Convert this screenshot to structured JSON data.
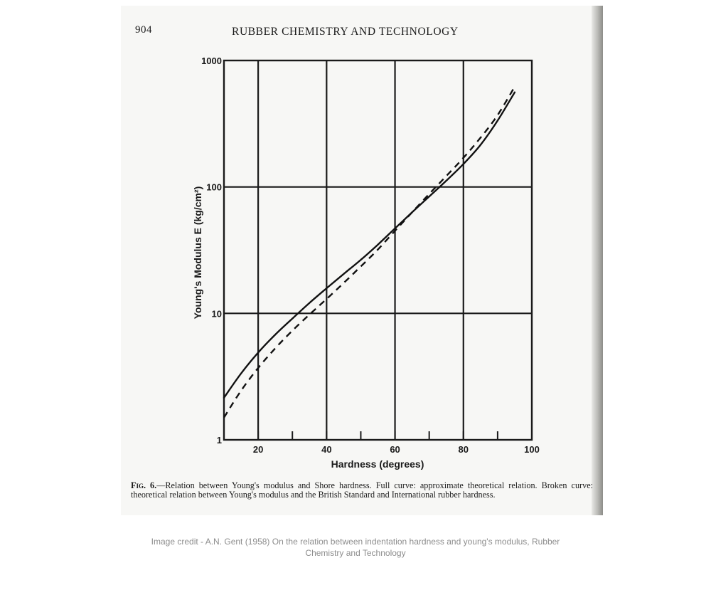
{
  "header": {
    "page_number": "904",
    "journal_title": "RUBBER CHEMISTRY AND TECHNOLOGY"
  },
  "chart_data": {
    "type": "line",
    "xlabel": "Hardness (degrees)",
    "ylabel": "Young's Modulus  E  (kg/cm²)",
    "x_ticks": [
      "20",
      "40",
      "60",
      "80",
      "100"
    ],
    "y_ticks": [
      "1",
      "10",
      "100",
      "1000"
    ],
    "xlim": [
      10,
      100
    ],
    "ylim": [
      1,
      1000
    ],
    "y_scale": "log",
    "grid": true,
    "series": [
      {
        "style": "solid",
        "x": [
          10,
          15,
          20,
          25,
          30,
          35,
          40,
          45,
          50,
          55,
          60,
          65,
          70,
          75,
          80,
          85,
          90,
          95
        ],
        "y": [
          2.15,
          3.35,
          4.9,
          6.8,
          9.1,
          12.1,
          15.8,
          20.5,
          26.5,
          35,
          47,
          63,
          84,
          112,
          152,
          215,
          335,
          560
        ]
      },
      {
        "style": "dashed",
        "x": [
          10,
          15,
          20,
          25,
          30,
          35,
          40,
          45,
          50,
          55,
          60,
          65,
          70,
          75,
          80,
          85,
          90,
          95
        ],
        "y": [
          1.5,
          2.45,
          3.7,
          5.3,
          7.3,
          9.8,
          13,
          17.4,
          23.5,
          32,
          45,
          63,
          88,
          122,
          170,
          245,
          370,
          620
        ]
      }
    ]
  },
  "caption": {
    "label": "Fig. 6.",
    "text": "—Relation between Young's modulus and Shore hardness.   Full curve: approximate theoretical relation.   Broken curve: theoretical relation between Young's modulus and the British Standard and International rubber hardness."
  },
  "credit": "Image credit - A.N. Gent (1958) On the relation between indentation hardness and young's modulus, Rubber Chemistry and Technology"
}
